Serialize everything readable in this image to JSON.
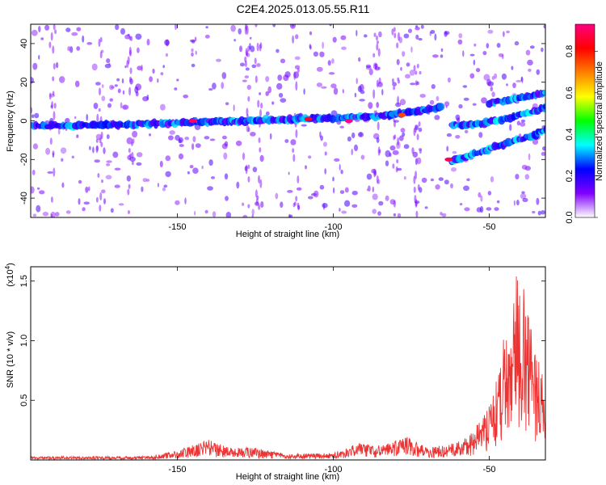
{
  "title": "C2E4.2025.013.05.55.R11",
  "chart_data": [
    {
      "type": "heatmap",
      "name": "spectrogram",
      "xlabel": "Height of straight line (km)",
      "ylabel": "Frequency (Hz)",
      "xlim": [
        -197,
        -32
      ],
      "ylim": [
        -50,
        50
      ],
      "xticks": [
        -150,
        -100,
        -50
      ],
      "yticks": [
        -40,
        -20,
        0,
        20,
        40
      ],
      "colorbar": {
        "label": "Normalized spectral amplitude",
        "range": [
          0.0,
          0.93
        ],
        "ticks": [
          0.0,
          0.2,
          0.4,
          0.6,
          0.8
        ],
        "colormap": [
          "#ffffff",
          "#8000ff",
          "#0000ff",
          "#00ffff",
          "#00ff00",
          "#ffff00",
          "#ff8000",
          "#ff0000",
          "#ff0080"
        ]
      },
      "bands": [
        {
          "x": [
            -197,
            -180,
            -160,
            -140,
            -120,
            -100,
            -85,
            -75,
            -65
          ],
          "y": [
            -2.5,
            -2.5,
            -1.5,
            -0.5,
            0.5,
            1.5,
            2.5,
            4.5,
            7
          ]
        },
        {
          "x": [
            -62,
            -55,
            -45,
            -35,
            -31
          ],
          "y": [
            -21,
            -17,
            -12,
            -7,
            -4
          ]
        },
        {
          "x": [
            -62,
            -55,
            -45,
            -35,
            -31
          ],
          "y": [
            -2,
            -2,
            1,
            5,
            8
          ]
        },
        {
          "x": [
            -50,
            -43,
            -36,
            -31
          ],
          "y": [
            9,
            11,
            13,
            15
          ]
        }
      ],
      "peaks": [
        {
          "x": -145,
          "y": 0,
          "amp": 0.9
        },
        {
          "x": -108,
          "y": 1,
          "amp": 0.85
        },
        {
          "x": -95,
          "y": 0,
          "amp": 0.93
        },
        {
          "x": -63,
          "y": -20,
          "amp": 0.9
        },
        {
          "x": -78,
          "y": 3,
          "amp": 0.75
        }
      ]
    },
    {
      "type": "line",
      "name": "snr",
      "xlabel": "Height of straight line (km)",
      "ylabel": "SNR (10 * v/v)",
      "y_multiplier": "(x10",
      "y_multiplier_exp": "4",
      "y_multiplier_close": ")",
      "xlim": [
        -197,
        -32
      ],
      "ylim": [
        0,
        1.62
      ],
      "xticks": [
        -150,
        -100,
        -50
      ],
      "yticks": [
        0.5,
        1.0,
        1.5
      ],
      "ytick_labels": [
        "0.5",
        "1.0",
        "1.5"
      ],
      "color": "#ee3333",
      "envelope": {
        "x": [
          -197,
          -160,
          -150,
          -140,
          -135,
          -125,
          -115,
          -100,
          -92,
          -85,
          -76,
          -70,
          -60,
          -55,
          -50,
          -47,
          -45,
          -43,
          -40,
          -37,
          -34,
          -32
        ],
        "y": [
          0.03,
          0.03,
          0.08,
          0.17,
          0.12,
          0.1,
          0.05,
          0.06,
          0.14,
          0.12,
          0.2,
          0.1,
          0.15,
          0.25,
          0.45,
          0.75,
          1.1,
          1.55,
          1.6,
          1.2,
          0.9,
          0.55
        ]
      }
    }
  ]
}
